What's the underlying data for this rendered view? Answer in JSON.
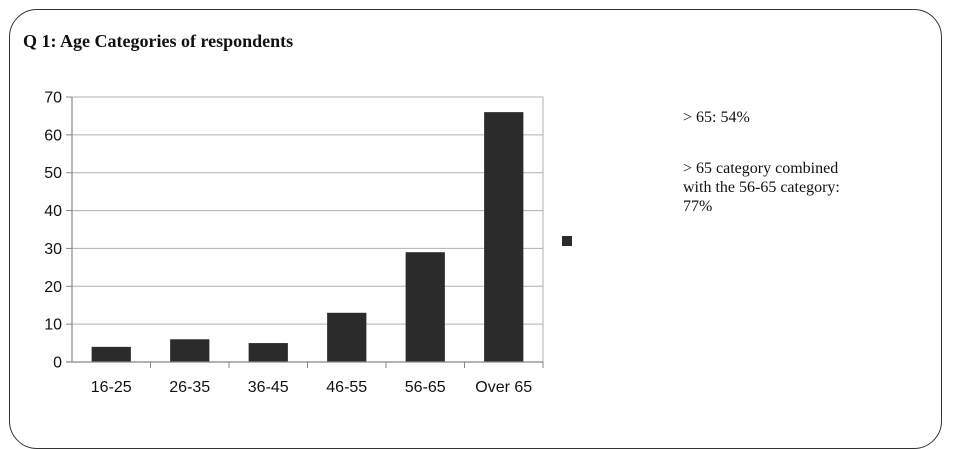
{
  "page": {
    "title": "Q 1:  Age Categories of respondents"
  },
  "notes": {
    "line1": "> 65:  54%",
    "line2": [
      "> 65 category combined",
      "with the 56-65 category:",
      "77%"
    ]
  },
  "chart_data": {
    "type": "bar",
    "title": "Q 1:  Age Categories of respondents",
    "xlabel": "",
    "ylabel": "",
    "categories": [
      "16-25",
      "26-35",
      "36-45",
      "46-55",
      "56-65",
      "Over 65"
    ],
    "values": [
      4,
      6,
      5,
      13,
      29,
      66
    ],
    "ylim": [
      0,
      70
    ],
    "yticks": [
      0,
      10,
      20,
      30,
      40,
      50,
      60,
      70
    ],
    "grid": true,
    "legend": "right",
    "colors": {
      "bar": "#2b2b2b",
      "grid": "#b0b0b0",
      "axis": "#888888"
    }
  }
}
